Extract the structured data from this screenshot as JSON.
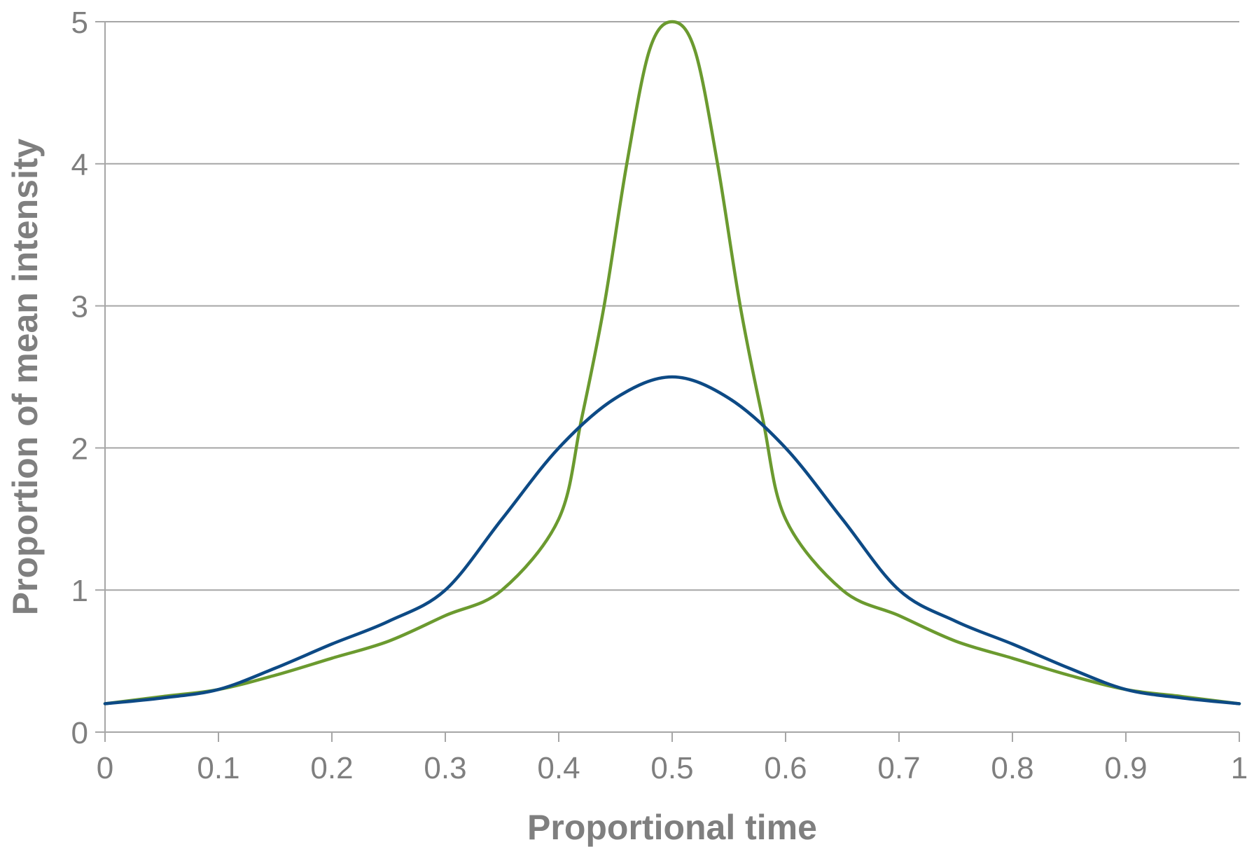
{
  "chart_data": {
    "type": "line",
    "title": "",
    "xlabel": "Proportional time",
    "ylabel": "Proportion of mean intensity",
    "xlim": [
      0,
      1
    ],
    "ylim": [
      0,
      5
    ],
    "x_ticks": [
      "0",
      "0.1",
      "0.2",
      "0.3",
      "0.4",
      "0.5",
      "0.6",
      "0.7",
      "0.8",
      "0.9",
      "1"
    ],
    "y_ticks": [
      "0",
      "1",
      "2",
      "3",
      "4",
      "5"
    ],
    "grid": true,
    "legend": "none",
    "series": [
      {
        "color": "#6b9a2f",
        "x": [
          0,
          0.05,
          0.1,
          0.15,
          0.2,
          0.25,
          0.3,
          0.35,
          0.4,
          0.42,
          0.44,
          0.46,
          0.48,
          0.5,
          0.52,
          0.54,
          0.56,
          0.58,
          0.6,
          0.65,
          0.7,
          0.75,
          0.8,
          0.85,
          0.9,
          0.95,
          1
        ],
        "y": [
          0.2,
          0.25,
          0.3,
          0.4,
          0.52,
          0.64,
          0.82,
          1.0,
          1.5,
          2.2,
          3.0,
          4.0,
          4.8,
          5.0,
          4.8,
          4.0,
          3.0,
          2.2,
          1.5,
          1.0,
          0.82,
          0.64,
          0.52,
          0.4,
          0.3,
          0.25,
          0.2
        ]
      },
      {
        "color": "#0d4a85",
        "x": [
          0,
          0.05,
          0.1,
          0.15,
          0.2,
          0.25,
          0.3,
          0.35,
          0.4,
          0.45,
          0.5,
          0.55,
          0.6,
          0.65,
          0.7,
          0.75,
          0.8,
          0.85,
          0.9,
          0.95,
          1
        ],
        "y": [
          0.2,
          0.24,
          0.3,
          0.45,
          0.62,
          0.78,
          1.0,
          1.5,
          2.0,
          2.35,
          2.5,
          2.35,
          2.0,
          1.5,
          1.0,
          0.78,
          0.62,
          0.45,
          0.3,
          0.24,
          0.2
        ]
      }
    ]
  }
}
